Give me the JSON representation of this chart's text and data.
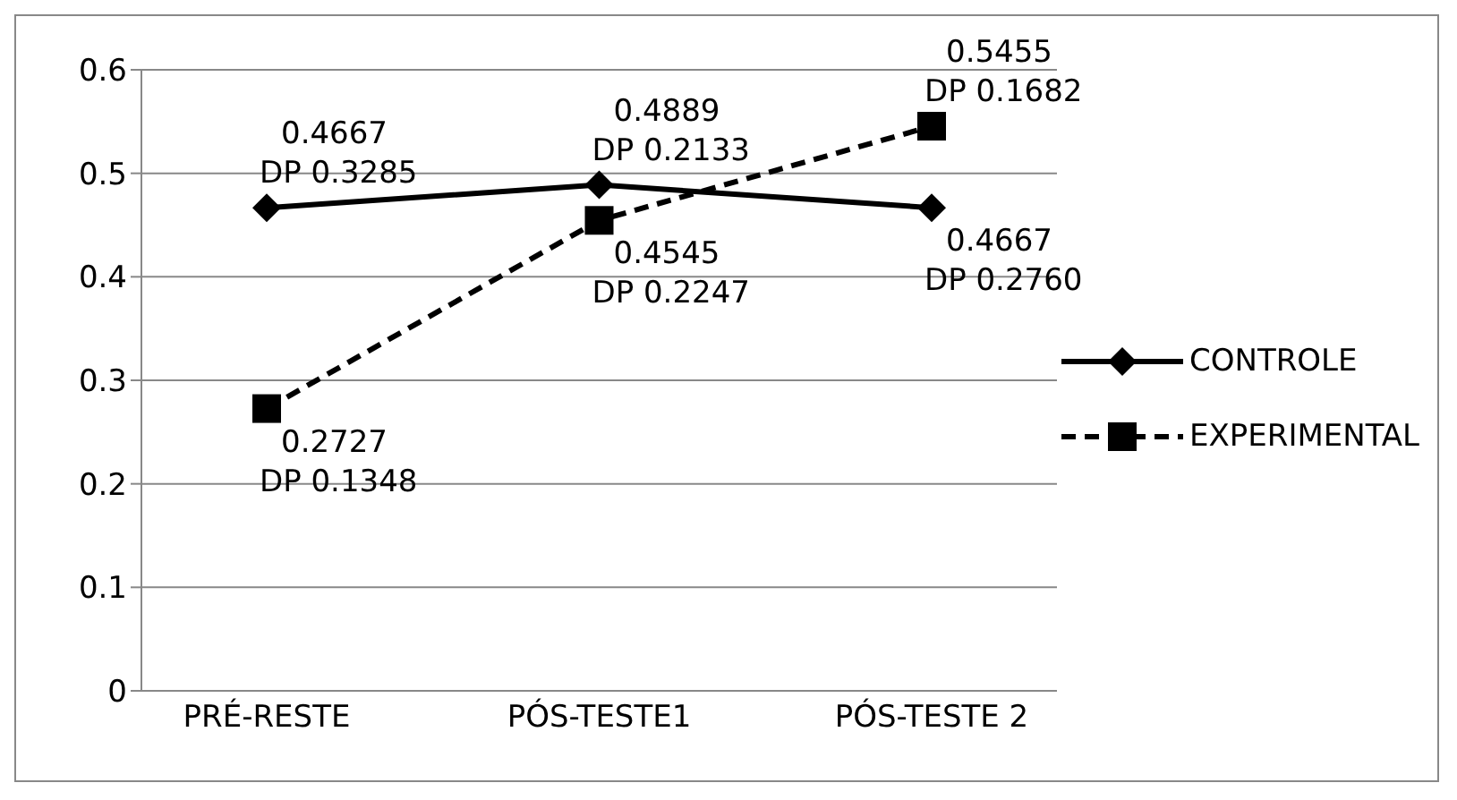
{
  "chart_data": {
    "type": "line",
    "categories": [
      "PRÉ-RESTE",
      "PÓS-TESTE1",
      "PÓS-TESTE 2"
    ],
    "series": [
      {
        "name": "CONTROLE",
        "color": "#000000",
        "marker": "diamond",
        "line_style": "solid",
        "values": [
          0.4667,
          0.4889,
          0.4667
        ],
        "value_labels": [
          "0.4667\nDP 0.3285",
          "0.4889\nDP 0.2133",
          "0.4667\nDP 0.2760"
        ]
      },
      {
        "name": "EXPERIMENTAL",
        "color": "#000000",
        "marker": "square",
        "line_style": "dashed",
        "values": [
          0.2727,
          0.4545,
          0.5455
        ],
        "value_labels": [
          "0.2727\nDP 0.1348",
          "0.4545\nDP 0.2247",
          "0.5455\nDP 0.1682"
        ]
      }
    ],
    "ylim": [
      0,
      0.6
    ],
    "yticks": [
      0,
      0.1,
      0.2,
      0.3,
      0.4,
      0.5,
      0.6
    ],
    "grid": "y",
    "legend": "right"
  }
}
